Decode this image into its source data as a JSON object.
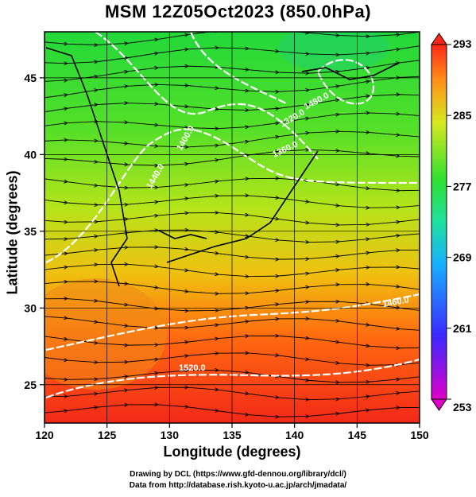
{
  "title": "MSM 12Z05Oct2023 (850.0hPa)",
  "xlabel": "Longitude (degrees)",
  "ylabel": "Latitude  (degrees)",
  "x_ticks": [
    "120",
    "125",
    "130",
    "135",
    "140",
    "145",
    "150"
  ],
  "y_ticks": [
    "25",
    "30",
    "35",
    "40",
    "45"
  ],
  "colorbar_ticks": [
    "293",
    "285",
    "277",
    "269",
    "261",
    "253"
  ],
  "contour_labels": [
    "1480.0",
    "1320.0",
    "1360.0",
    "1400.0",
    "1440.0",
    "1460.0",
    "1520.0"
  ],
  "credit_line1": "Drawing by DCL (https://www.gfd-dennou.org/library/dcl/)",
  "credit_line2": "Data from http://database.rish.kyoto-u.ac.jp/arch/jmadata/",
  "colors": {
    "cold": "#d000c0",
    "cool": "#2050ff",
    "mid": "#30e030",
    "warm": "#e0e020",
    "hot": "#ff3010"
  }
}
